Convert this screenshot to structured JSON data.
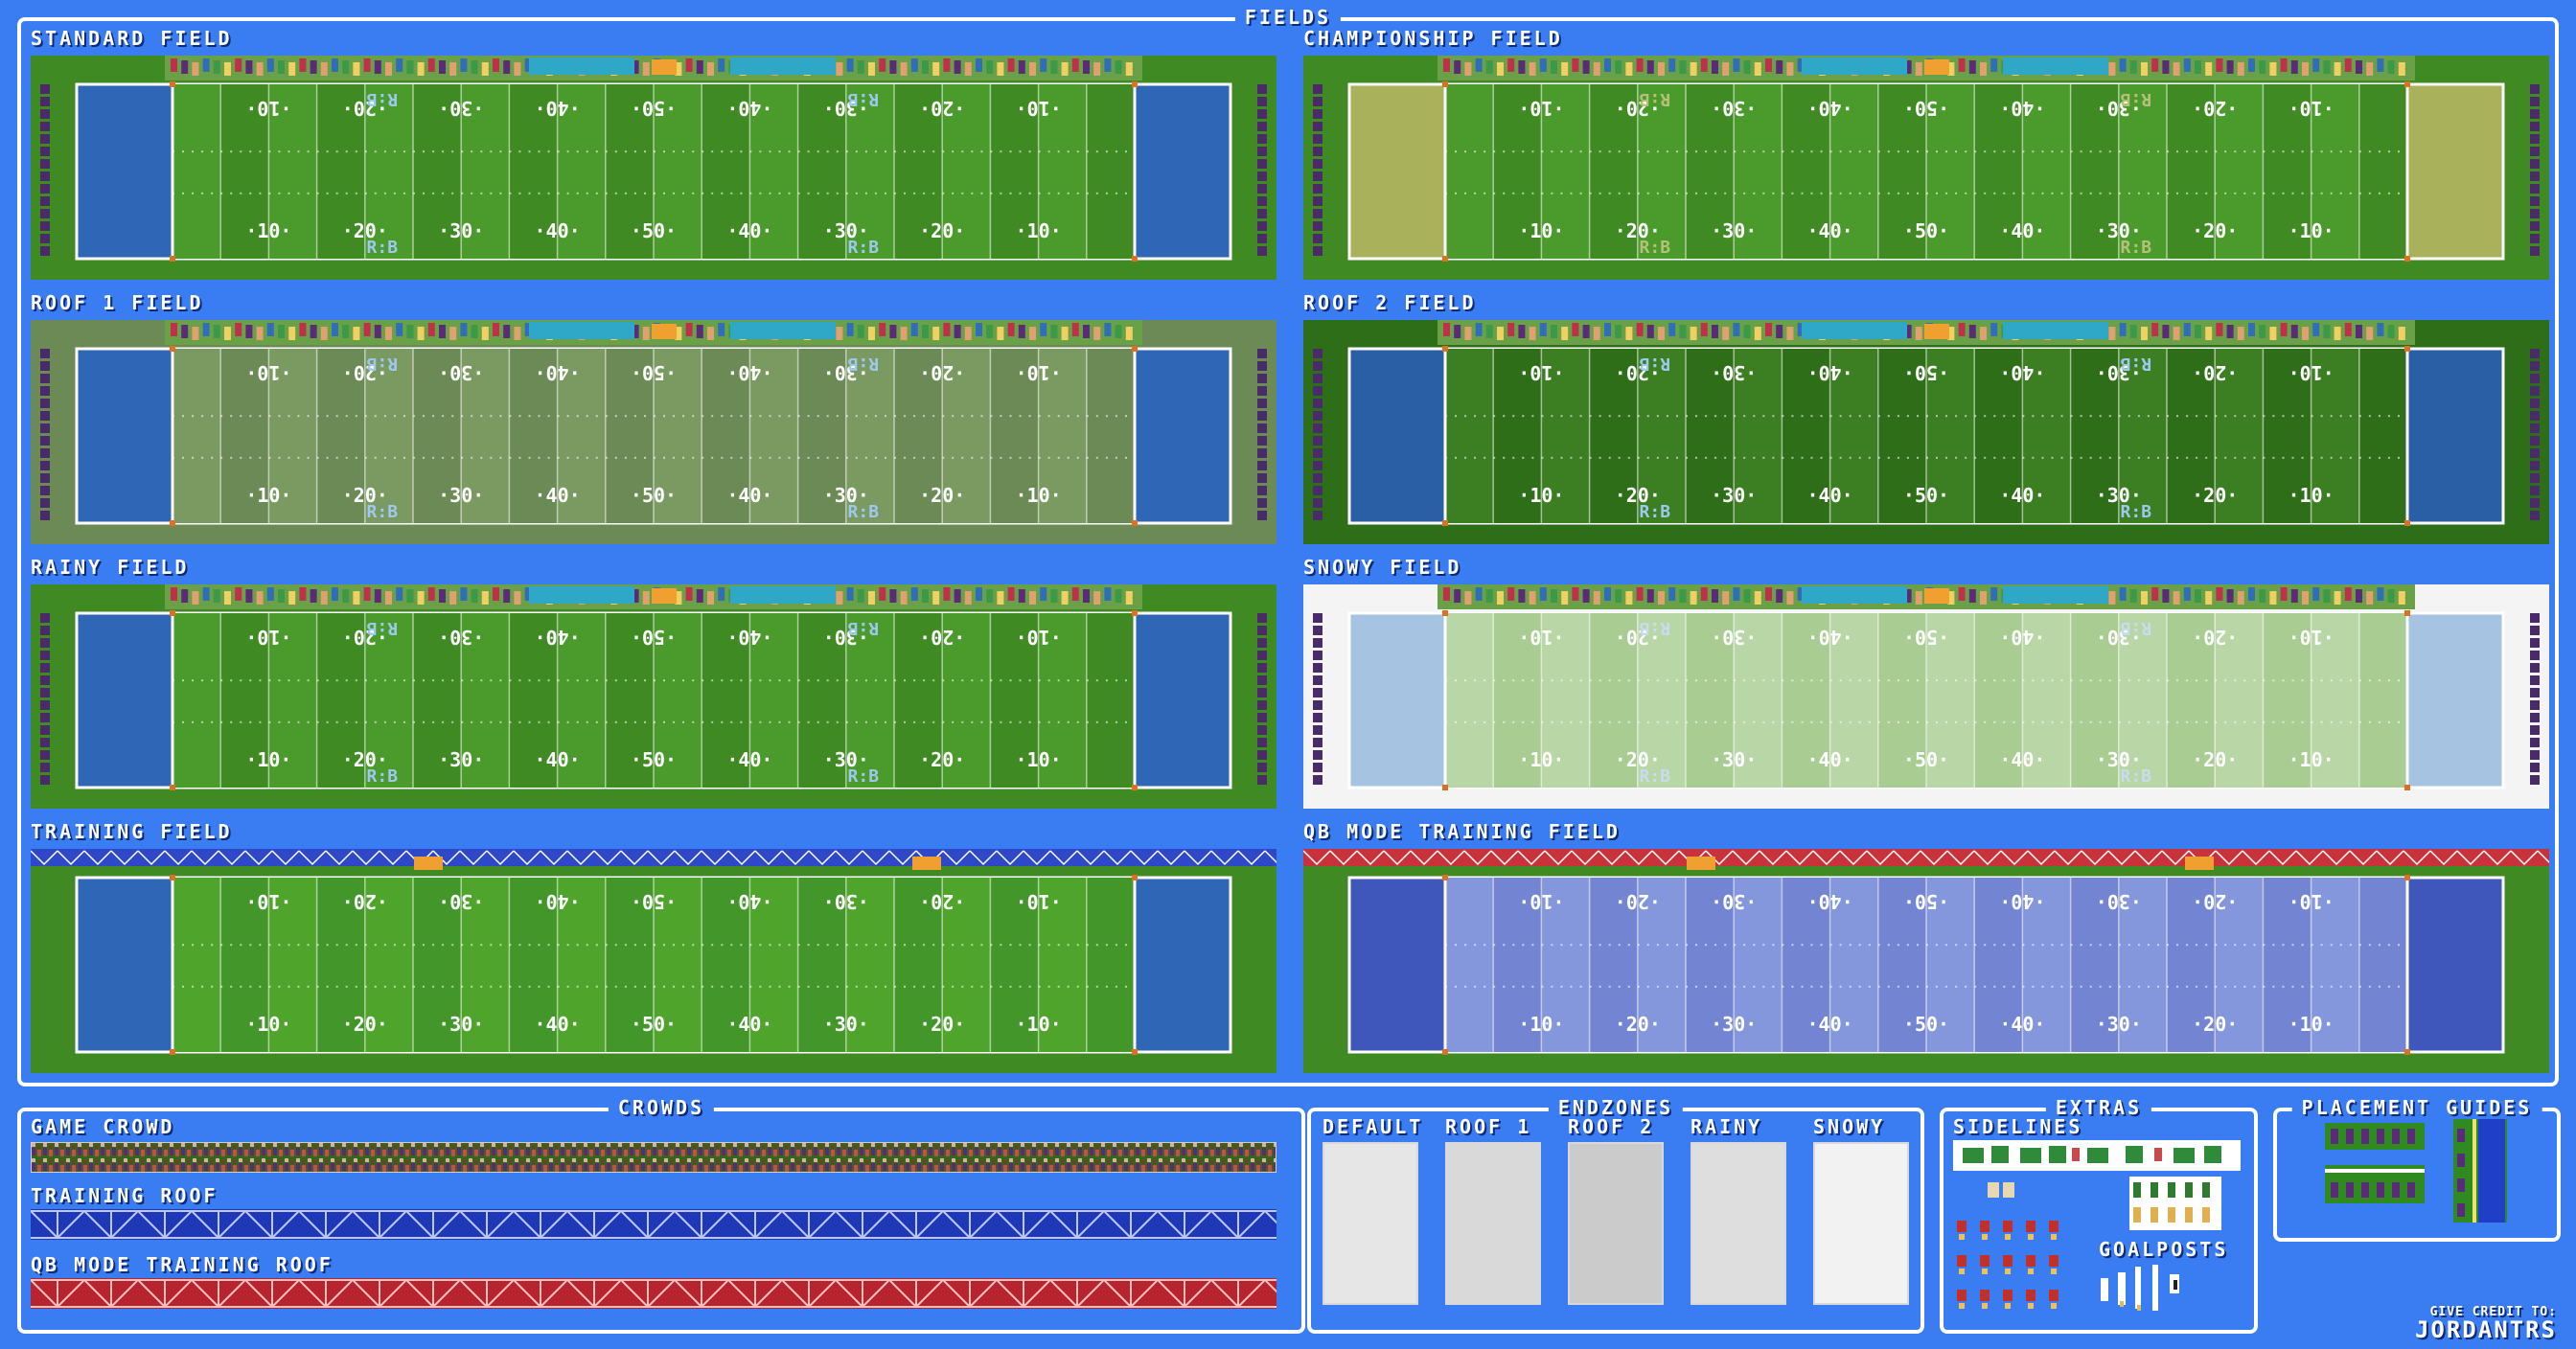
{
  "sections": {
    "fields": "FIELDS",
    "crowds": "CROWDS",
    "endzones": "ENDZONES",
    "extras": "EXTRAS",
    "placement": "PLACEMENT GUIDES"
  },
  "fields": [
    {
      "label": "STANDARD FIELD",
      "grass": "#3f8a22",
      "stripeA": "#4b9a2c",
      "stripeB": "#3f8a22",
      "endzone": "#2f66b6",
      "border": "#3f8a22",
      "logo": "#9ec8f0",
      "crowd": true
    },
    {
      "label": "CHAMPIONSHIP FIELD",
      "grass": "#3f8a22",
      "stripeA": "#4b9a2c",
      "stripeB": "#3f8a22",
      "endzone": "#a9b25a",
      "border": "#3f8a22",
      "logo": "#b6c07a",
      "crowd": true
    },
    {
      "label": "ROOF 1 FIELD",
      "grass": "#6b8a55",
      "stripeA": "#7a9a62",
      "stripeB": "#6b8a55",
      "endzone": "#2f66b6",
      "border": "#6b8a55",
      "logo": "#9ec8f0",
      "crowd": true
    },
    {
      "label": "ROOF 2 FIELD",
      "grass": "#2f6e18",
      "stripeA": "#3c7e22",
      "stripeB": "#2f6e18",
      "endzone": "#2a5fa6",
      "border": "#2f6e18",
      "logo": "#9ec8f0",
      "crowd": true
    },
    {
      "label": "RAINY FIELD",
      "grass": "#3f8a22",
      "stripeA": "#4b9a2c",
      "stripeB": "#3f8a22",
      "endzone": "#2f66b6",
      "border": "#3f8a22",
      "logo": "#9ec8f0",
      "crowd": true
    },
    {
      "label": "SNOWY FIELD",
      "grass": "#f4f4f4",
      "stripeA": "#b9d6a6",
      "stripeB": "#a9cc93",
      "endzone": "#a6c3e2",
      "border": "#f4f4f4",
      "logo": "#c9dcef",
      "crowd": true
    },
    {
      "label": "TRAINING FIELD",
      "grass": "#3f8a22",
      "stripeA": "#4fa52c",
      "stripeB": "#43962a",
      "endzone": "#2f66b6",
      "border": "#3f8a22",
      "logo": "",
      "crowd": false,
      "roof": "#2f48c8"
    },
    {
      "label": "QB MODE TRAINING FIELD",
      "grass": "#3f8a22",
      "stripeA": "#8496dc",
      "stripeB": "#7385d2",
      "endzone": "#3f56bb",
      "border": "#3f8a22",
      "logo": "",
      "crowd": false,
      "roof": "#c8323a"
    }
  ],
  "yard_lines": [
    "10",
    "20",
    "30",
    "40",
    "50",
    "40",
    "30",
    "20",
    "10"
  ],
  "logo_text": "R:B",
  "crowds": {
    "game": "GAME CROWD",
    "training": "TRAINING ROOF",
    "qb": "QB MODE TRAINING ROOF"
  },
  "endzones": [
    {
      "label": "DEFAULT",
      "color": "#e6e6e6"
    },
    {
      "label": "ROOF 1",
      "color": "#d9d9d9"
    },
    {
      "label": "ROOF 2",
      "color": "#cbcbcb"
    },
    {
      "label": "RAINY",
      "color": "#dedede"
    },
    {
      "label": "SNOWY",
      "color": "#f2f2f2"
    }
  ],
  "extras": {
    "sidelines": "SIDELINES",
    "goalposts": "GOALPOSTS"
  },
  "credit": {
    "line1": "GIVE CREDIT TO:",
    "line2": "JORDANTRS"
  }
}
